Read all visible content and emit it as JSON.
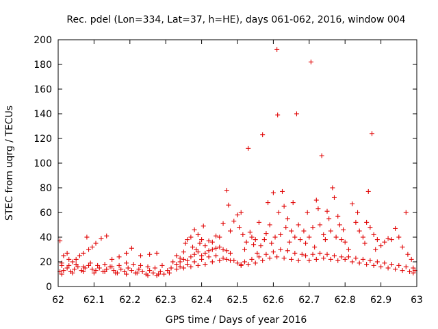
{
  "chart_data": {
    "type": "scatter",
    "title": "Rec. pdel (Lon=334, Lat=37, h=HE), days 061-062, 2016, window 004",
    "xlabel": "GPS time / Days of year 2016",
    "ylabel": "STEC from uqrg / TECUs",
    "xlim": [
      62,
      63
    ],
    "ylim": [
      0,
      200
    ],
    "x_ticks": [
      "62",
      "62.1",
      "62.2",
      "62.3",
      "62.4",
      "62.5",
      "62.6",
      "62.7",
      "62.8",
      "62.9",
      "63"
    ],
    "y_ticks": [
      "0",
      "20",
      "40",
      "60",
      "80",
      "100",
      "120",
      "140",
      "160",
      "180",
      "200"
    ],
    "grid": false,
    "marker": "+",
    "color": "#e00000",
    "series": [
      {
        "points": [
          [
            62.005,
            37
          ],
          [
            62.01,
            17
          ],
          [
            62.015,
            25
          ],
          [
            62.025,
            27
          ],
          [
            62.03,
            22
          ],
          [
            62.04,
            20
          ],
          [
            62.05,
            22
          ],
          [
            62.06,
            25
          ],
          [
            62.07,
            27
          ],
          [
            62.08,
            40
          ],
          [
            62.085,
            30
          ],
          [
            62.095,
            32
          ],
          [
            62.105,
            35
          ],
          [
            62.12,
            39
          ],
          [
            62.135,
            41
          ],
          [
            62.15,
            22
          ],
          [
            62.17,
            24
          ],
          [
            62.19,
            27
          ],
          [
            62.205,
            31
          ],
          [
            62.23,
            25
          ],
          [
            62.255,
            26
          ],
          [
            62.275,
            27
          ],
          [
            62.005,
            12
          ],
          [
            62.015,
            13
          ],
          [
            62.025,
            15
          ],
          [
            62.035,
            12
          ],
          [
            62.045,
            14
          ],
          [
            62.055,
            16
          ],
          [
            62.065,
            13
          ],
          [
            62.075,
            15
          ],
          [
            62.085,
            17
          ],
          [
            62.095,
            14
          ],
          [
            62.105,
            13
          ],
          [
            62.115,
            15
          ],
          [
            62.125,
            12
          ],
          [
            62.135,
            14
          ],
          [
            62.145,
            16
          ],
          [
            62.155,
            13
          ],
          [
            62.165,
            11
          ],
          [
            62.175,
            14
          ],
          [
            62.185,
            12
          ],
          [
            62.195,
            15
          ],
          [
            62.205,
            13
          ],
          [
            62.215,
            11
          ],
          [
            62.225,
            14
          ],
          [
            62.235,
            12
          ],
          [
            62.245,
            10
          ],
          [
            62.255,
            13
          ],
          [
            62.265,
            11
          ],
          [
            62.275,
            9
          ],
          [
            62.285,
            12
          ],
          [
            62.295,
            10
          ],
          [
            62.305,
            13
          ],
          [
            62.315,
            15
          ],
          [
            62.01,
            19
          ],
          [
            62.03,
            17
          ],
          [
            62.05,
            18
          ],
          [
            62.07,
            16
          ],
          [
            62.09,
            19
          ],
          [
            62.11,
            17
          ],
          [
            62.13,
            18
          ],
          [
            62.15,
            16
          ],
          [
            62.17,
            17
          ],
          [
            62.19,
            19
          ],
          [
            62.21,
            18
          ],
          [
            62.23,
            17
          ],
          [
            62.25,
            16
          ],
          [
            62.27,
            15
          ],
          [
            62.29,
            17
          ],
          [
            62.01,
            10
          ],
          [
            62.04,
            11
          ],
          [
            62.07,
            12
          ],
          [
            62.1,
            11
          ],
          [
            62.13,
            12
          ],
          [
            62.16,
            11
          ],
          [
            62.19,
            10
          ],
          [
            62.22,
            11
          ],
          [
            62.25,
            9
          ],
          [
            62.28,
            10
          ],
          [
            62.31,
            11
          ],
          [
            62.32,
            20
          ],
          [
            62.33,
            25
          ],
          [
            62.34,
            23
          ],
          [
            62.35,
            28
          ],
          [
            62.355,
            35
          ],
          [
            62.36,
            38
          ],
          [
            62.37,
            40
          ],
          [
            62.375,
            32
          ],
          [
            62.38,
            46
          ],
          [
            62.385,
            30
          ],
          [
            62.39,
            42
          ],
          [
            62.395,
            35
          ],
          [
            62.4,
            38
          ],
          [
            62.405,
            49
          ],
          [
            62.41,
            33
          ],
          [
            62.42,
            37
          ],
          [
            62.43,
            36
          ],
          [
            62.44,
            41
          ],
          [
            62.45,
            40
          ],
          [
            62.46,
            51
          ],
          [
            62.47,
            78
          ],
          [
            62.475,
            66
          ],
          [
            62.48,
            45
          ],
          [
            62.49,
            53
          ],
          [
            62.5,
            58
          ],
          [
            62.505,
            48
          ],
          [
            62.51,
            60
          ],
          [
            62.33,
            18
          ],
          [
            62.34,
            20
          ],
          [
            62.35,
            22
          ],
          [
            62.36,
            21
          ],
          [
            62.37,
            24
          ],
          [
            62.38,
            26
          ],
          [
            62.39,
            28
          ],
          [
            62.4,
            25
          ],
          [
            62.41,
            27
          ],
          [
            62.42,
            29
          ],
          [
            62.43,
            30
          ],
          [
            62.44,
            31
          ],
          [
            62.45,
            32
          ],
          [
            62.46,
            30
          ],
          [
            62.47,
            29
          ],
          [
            62.48,
            27
          ],
          [
            62.34,
            16
          ],
          [
            62.36,
            18
          ],
          [
            62.38,
            20
          ],
          [
            62.4,
            22
          ],
          [
            62.42,
            24
          ],
          [
            62.44,
            25
          ],
          [
            62.46,
            23
          ],
          [
            62.48,
            21
          ],
          [
            62.5,
            19
          ],
          [
            62.33,
            14
          ],
          [
            62.35,
            15
          ],
          [
            62.37,
            16
          ],
          [
            62.39,
            17
          ],
          [
            62.41,
            18
          ],
          [
            62.43,
            20
          ],
          [
            62.45,
            21
          ],
          [
            62.47,
            22
          ],
          [
            62.49,
            21
          ],
          [
            62.51,
            18
          ],
          [
            62.515,
            42
          ],
          [
            62.52,
            30
          ],
          [
            62.525,
            36
          ],
          [
            62.53,
            112
          ],
          [
            62.535,
            44
          ],
          [
            62.54,
            40
          ],
          [
            62.545,
            34
          ],
          [
            62.55,
            38
          ],
          [
            62.555,
            27
          ],
          [
            62.56,
            52
          ],
          [
            62.565,
            33
          ],
          [
            62.57,
            123
          ],
          [
            62.575,
            38
          ],
          [
            62.58,
            43
          ],
          [
            62.585,
            68
          ],
          [
            62.59,
            50
          ],
          [
            62.595,
            35
          ],
          [
            62.6,
            76
          ],
          [
            62.605,
            40
          ],
          [
            62.61,
            192
          ],
          [
            62.612,
            139
          ],
          [
            62.615,
            60
          ],
          [
            62.62,
            42
          ],
          [
            62.625,
            77
          ],
          [
            62.63,
            65
          ],
          [
            62.635,
            48
          ],
          [
            62.64,
            55
          ],
          [
            62.645,
            36
          ],
          [
            62.65,
            45
          ],
          [
            62.655,
            68
          ],
          [
            62.66,
            40
          ],
          [
            62.665,
            140
          ],
          [
            62.67,
            50
          ],
          [
            62.675,
            38
          ],
          [
            62.52,
            20
          ],
          [
            62.54,
            22
          ],
          [
            62.56,
            24
          ],
          [
            62.58,
            26
          ],
          [
            62.6,
            28
          ],
          [
            62.62,
            30
          ],
          [
            62.64,
            29
          ],
          [
            62.66,
            27
          ],
          [
            62.68,
            26
          ],
          [
            62.51,
            17
          ],
          [
            62.53,
            18
          ],
          [
            62.55,
            19
          ],
          [
            62.57,
            21
          ],
          [
            62.59,
            23
          ],
          [
            62.61,
            24
          ],
          [
            62.63,
            23
          ],
          [
            62.65,
            22
          ],
          [
            62.67,
            21
          ],
          [
            62.685,
            45
          ],
          [
            62.69,
            35
          ],
          [
            62.695,
            60
          ],
          [
            62.7,
            40
          ],
          [
            62.705,
            182
          ],
          [
            62.71,
            48
          ],
          [
            62.715,
            32
          ],
          [
            62.72,
            70
          ],
          [
            62.725,
            63
          ],
          [
            62.73,
            50
          ],
          [
            62.735,
            106
          ],
          [
            62.74,
            42
          ],
          [
            62.745,
            38
          ],
          [
            62.75,
            61
          ],
          [
            62.755,
            55
          ],
          [
            62.76,
            45
          ],
          [
            62.765,
            80
          ],
          [
            62.77,
            72
          ],
          [
            62.775,
            40
          ],
          [
            62.78,
            57
          ],
          [
            62.785,
            50
          ],
          [
            62.79,
            38
          ],
          [
            62.795,
            46
          ],
          [
            62.8,
            36
          ],
          [
            62.69,
            25
          ],
          [
            62.71,
            26
          ],
          [
            62.73,
            27
          ],
          [
            62.75,
            26
          ],
          [
            62.77,
            25
          ],
          [
            62.79,
            24
          ],
          [
            62.7,
            21
          ],
          [
            62.72,
            22
          ],
          [
            62.74,
            23
          ],
          [
            62.76,
            22
          ],
          [
            62.78,
            21
          ],
          [
            62.8,
            22
          ],
          [
            62.81,
            30
          ],
          [
            62.82,
            67
          ],
          [
            62.83,
            52
          ],
          [
            62.835,
            60
          ],
          [
            62.84,
            45
          ],
          [
            62.85,
            40
          ],
          [
            62.855,
            35
          ],
          [
            62.86,
            52
          ],
          [
            62.865,
            77
          ],
          [
            62.87,
            48
          ],
          [
            62.875,
            124
          ],
          [
            62.88,
            42
          ],
          [
            62.885,
            30
          ],
          [
            62.89,
            38
          ],
          [
            62.9,
            33
          ],
          [
            62.91,
            36
          ],
          [
            62.92,
            39
          ],
          [
            62.93,
            38
          ],
          [
            62.94,
            47
          ],
          [
            62.95,
            40
          ],
          [
            62.96,
            32
          ],
          [
            62.97,
            60
          ],
          [
            62.975,
            26
          ],
          [
            62.985,
            22
          ],
          [
            62.81,
            24
          ],
          [
            62.83,
            23
          ],
          [
            62.85,
            22
          ],
          [
            62.87,
            21
          ],
          [
            62.89,
            20
          ],
          [
            62.91,
            19
          ],
          [
            62.93,
            18
          ],
          [
            62.95,
            17
          ],
          [
            62.97,
            16
          ],
          [
            62.99,
            15
          ],
          [
            62.82,
            20
          ],
          [
            62.84,
            19
          ],
          [
            62.86,
            18
          ],
          [
            62.88,
            17
          ],
          [
            62.9,
            16
          ],
          [
            62.92,
            15
          ],
          [
            62.94,
            14
          ],
          [
            62.96,
            13
          ],
          [
            62.98,
            12
          ],
          [
            62.99,
            11
          ],
          [
            62.995,
            13
          ]
        ]
      }
    ]
  }
}
